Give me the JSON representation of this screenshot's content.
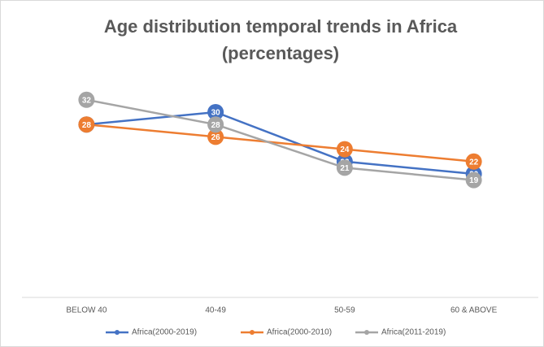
{
  "chart_data": {
    "type": "line",
    "title": "Age distribution temporal trends in Africa (percentages)",
    "categories": [
      "BELOW 40",
      "40-49",
      "50-59",
      "60 & ABOVE"
    ],
    "series": [
      {
        "name": "Africa(2000-2019)",
        "color": "#4472c4",
        "values": [
          28,
          30,
          22,
          20
        ]
      },
      {
        "name": "Africa(2000-2010)",
        "color": "#ed7d31",
        "values": [
          28,
          26,
          24,
          22
        ]
      },
      {
        "name": "Africa(2011-2019)",
        "color": "#a5a5a5",
        "values": [
          32,
          28,
          21,
          19
        ]
      }
    ],
    "ylim": [
      0,
      40
    ],
    "legend": "bottom"
  }
}
